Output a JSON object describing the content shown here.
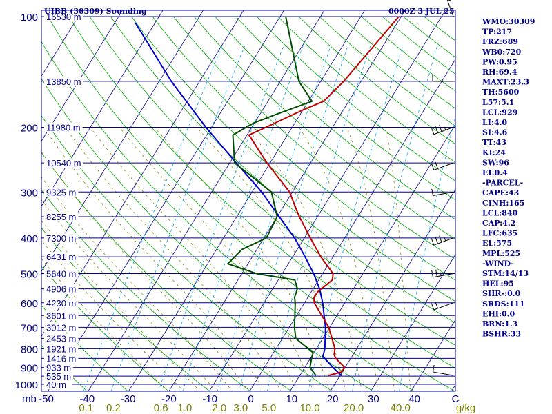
{
  "title": "UIBB (30309) Sounding",
  "valid_time": "0000Z  3 JUL 25",
  "indices": [
    "WMO:30309",
    "TP:217",
    "FRZ:689",
    "WB0:720",
    "PW:0.95",
    "RH:69.4",
    "MAXT:23.3",
    "TH:5600",
    "L57:5.1",
    "LCL:929",
    "LI:4.0",
    "SI:4.6",
    "TT:43",
    "KI:24",
    "SW:96",
    "EI:0.4",
    "-PARCEL-",
    "CAPE:43",
    "CINH:165",
    "LCL:840",
    "CAP:4.2",
    "LFC:635",
    "EL:575",
    "MPL:525",
    "-WIND-",
    "STM:14/13",
    "HEL:95",
    "SHR-:0.0",
    "SRDS:111",
    "EHI:0.0",
    "BRN:1.3",
    "BSHR:33"
  ],
  "colors": {
    "axis": "#00008b",
    "isobar": "#00008b",
    "isotherm": "#00008b",
    "dry_adiabat": "#00aa00",
    "moist_adiabat": "#888800",
    "mixing_ratio": "#00aaff",
    "temperature": "#c00000",
    "dewpoint": "#004d00",
    "parcel": "#0000cc"
  },
  "chart_data": {
    "type": "skew-t",
    "pressure_ticks": [
      "100",
      "200",
      "300",
      "400",
      "500",
      "600",
      "700",
      "800",
      "900",
      "1000"
    ],
    "pressure_unit": "mb",
    "temperature_ticks": [
      "-50",
      "-40",
      "-30",
      "-20",
      "-10",
      "0",
      "10",
      "20",
      "30",
      "40",
      "C"
    ],
    "mixing_ratio_labels": [
      "0.1",
      "0.2",
      "0.6",
      "1.0",
      "2.0",
      "3.0",
      "5.0",
      "10.0",
      "20.0",
      "40.0"
    ],
    "mixing_ratio_unit": "g/kg",
    "height_labels": [
      {
        "p": 100,
        "label": "16530 m"
      },
      {
        "p": 150,
        "label": "13850 m"
      },
      {
        "p": 200,
        "label": "11980 m"
      },
      {
        "p": 250,
        "label": "10540 m"
      },
      {
        "p": 300,
        "label": "9325 m"
      },
      {
        "p": 350,
        "label": "8255 m"
      },
      {
        "p": 400,
        "label": "7300 m"
      },
      {
        "p": 450,
        "label": "6431 m"
      },
      {
        "p": 500,
        "label": "5640 m"
      },
      {
        "p": 550,
        "label": "4906 m"
      },
      {
        "p": 600,
        "label": "4230 m"
      },
      {
        "p": 650,
        "label": "3601 m"
      },
      {
        "p": 700,
        "label": "3012 m"
      },
      {
        "p": 750,
        "label": "2453 m"
      },
      {
        "p": 800,
        "label": "1921 m"
      },
      {
        "p": 850,
        "label": "1416 m"
      },
      {
        "p": 900,
        "label": "933 m"
      },
      {
        "p": 950,
        "label": "535 m"
      },
      {
        "p": 1000,
        "label": "40 m"
      }
    ],
    "temperature_profile": [
      [
        946,
        17.1
      ],
      [
        925,
        19.8
      ],
      [
        900,
        19.9
      ],
      [
        850,
        16.3
      ],
      [
        830,
        15.3
      ],
      [
        800,
        14.6
      ],
      [
        700,
        9.8
      ],
      [
        600,
        2.4
      ],
      [
        580,
        1.5
      ],
      [
        560,
        1.6
      ],
      [
        520,
        3.4
      ],
      [
        500,
        2.6
      ],
      [
        450,
        -3.0
      ],
      [
        400,
        -8.5
      ],
      [
        350,
        -14.5
      ],
      [
        330,
        -16.9
      ],
      [
        300,
        -20.7
      ],
      [
        250,
        -30.8
      ],
      [
        210,
        -39.5
      ],
      [
        200,
        -36.5
      ],
      [
        180,
        -30.2
      ],
      [
        170,
        -26.2
      ],
      [
        150,
        -24.3
      ],
      [
        100,
        -20.6
      ]
    ],
    "dewpoint_profile": [
      [
        946,
        14.0
      ],
      [
        900,
        11.3
      ],
      [
        850,
        10.3
      ],
      [
        820,
        9.8
      ],
      [
        750,
        3.3
      ],
      [
        700,
        1.3
      ],
      [
        600,
        -2.3
      ],
      [
        580,
        -3.3
      ],
      [
        550,
        -3.9
      ],
      [
        520,
        -5.9
      ],
      [
        500,
        -16.3
      ],
      [
        470,
        -25.0
      ],
      [
        430,
        -23.7
      ],
      [
        400,
        -19.4
      ],
      [
        350,
        -20.0
      ],
      [
        300,
        -25.2
      ],
      [
        250,
        -38.8
      ],
      [
        210,
        -43.5
      ],
      [
        195,
        -40.3
      ],
      [
        185,
        -36.2
      ],
      [
        170,
        -29.1
      ],
      [
        150,
        -35.4
      ],
      [
        100,
        -48.6
      ]
    ],
    "parcel_profile": [
      [
        946,
        20.3
      ],
      [
        900,
        17.0
      ],
      [
        840,
        12.8
      ],
      [
        800,
        12.1
      ],
      [
        700,
        9.0
      ],
      [
        600,
        4.5
      ],
      [
        550,
        1.6
      ],
      [
        500,
        -2.2
      ],
      [
        450,
        -6.9
      ],
      [
        400,
        -12.4
      ],
      [
        350,
        -19.5
      ],
      [
        300,
        -27.6
      ],
      [
        250,
        -38.4
      ],
      [
        200,
        -51.4
      ],
      [
        150,
        -67.0
      ],
      [
        104,
        -84.9
      ]
    ],
    "wind_barbs": [
      {
        "p": 946,
        "dir": 280,
        "spd": 10
      },
      {
        "p": 600,
        "dir": 250,
        "spd": 20
      },
      {
        "p": 500,
        "dir": 260,
        "spd": 15
      },
      {
        "p": 400,
        "dir": 250,
        "spd": 25
      },
      {
        "p": 300,
        "dir": 260,
        "spd": 10
      },
      {
        "p": 250,
        "dir": 250,
        "spd": 20
      },
      {
        "p": 200,
        "dir": 250,
        "spd": 25
      },
      {
        "p": 150,
        "dir": 270,
        "spd": 10
      },
      {
        "p": 100,
        "dir": 340,
        "spd": 5
      }
    ]
  }
}
